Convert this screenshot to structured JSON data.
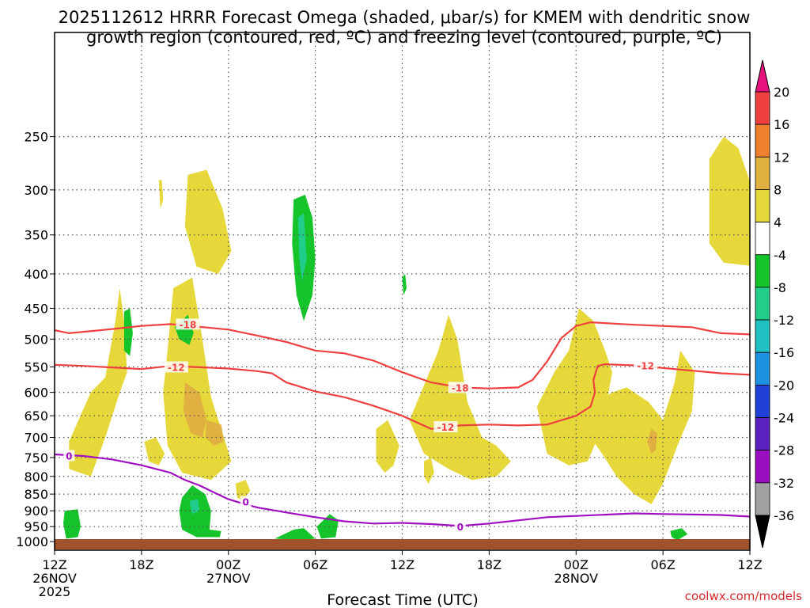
{
  "chart_data": {
    "type": "time-height contour",
    "title_line1": "2025112612 HRRR Forecast Omega (shaded, μbar/s) for KMEM with dendritic snow",
    "title_line2": "growth region (contoured, red, ºC) and freezing level (contoured, purple, ºC)",
    "xlabel": "Forecast Time (UTC)",
    "ylabel": "",
    "credit": "coolwx.com/models",
    "x_ticks": [
      {
        "hour": 0,
        "label": "12Z",
        "date": "26NOV",
        "year": "2025"
      },
      {
        "hour": 6,
        "label": "18Z"
      },
      {
        "hour": 12,
        "label": "00Z",
        "date": "27NOV"
      },
      {
        "hour": 18,
        "label": "06Z"
      },
      {
        "hour": 24,
        "label": "12Z"
      },
      {
        "hour": 30,
        "label": "18Z"
      },
      {
        "hour": 36,
        "label": "00Z",
        "date": "28NOV"
      },
      {
        "hour": 42,
        "label": "06Z"
      },
      {
        "hour": 48,
        "label": "12Z"
      }
    ],
    "xlim": [
      0,
      48
    ],
    "ylim_hpa": [
      1030,
      175
    ],
    "y_ticks": [
      250,
      300,
      350,
      400,
      450,
      500,
      550,
      600,
      650,
      700,
      750,
      800,
      850,
      900,
      950,
      1000
    ],
    "colorbar": {
      "ticks": [
        20,
        16,
        12,
        8,
        4,
        -4,
        -8,
        -12,
        -16,
        -20,
        -24,
        -28,
        -32,
        -36
      ],
      "colors": [
        "#e8127e",
        "#ef4040",
        "#ee8030",
        "#e0b040",
        "#e6d83a",
        "#ffffff",
        "#14c42a",
        "#22cc8a",
        "#20c0c0",
        "#1e90e0",
        "#2040d8",
        "#5a20c0",
        "#9a10c0",
        "#a0a0a0",
        "#000000"
      ]
    },
    "series": [
      {
        "name": "-18 °C isotherm",
        "color": "#ef4040",
        "label": "-18",
        "points": [
          [
            0,
            485
          ],
          [
            1,
            490
          ],
          [
            4,
            483
          ],
          [
            6,
            478
          ],
          [
            8,
            475
          ],
          [
            12,
            484
          ],
          [
            14,
            494
          ],
          [
            16,
            505
          ],
          [
            18,
            520
          ],
          [
            20,
            525
          ],
          [
            22,
            538
          ],
          [
            24,
            560
          ],
          [
            26,
            580
          ],
          [
            28,
            590
          ],
          [
            30,
            592
          ],
          [
            32,
            590
          ],
          [
            33,
            575
          ],
          [
            34,
            540
          ],
          [
            35,
            498
          ],
          [
            36,
            478
          ],
          [
            37,
            472
          ],
          [
            40,
            476
          ],
          [
            44,
            480
          ],
          [
            46,
            490
          ],
          [
            48,
            492
          ]
        ]
      },
      {
        "name": "-12 °C isotherm",
        "color": "#ef4040",
        "label": "-12",
        "points": [
          [
            0,
            546
          ],
          [
            2,
            548
          ],
          [
            6,
            554
          ],
          [
            8,
            548
          ],
          [
            12,
            553
          ],
          [
            14,
            558
          ],
          [
            15,
            562
          ],
          [
            16,
            580
          ],
          [
            18,
            598
          ],
          [
            20,
            610
          ],
          [
            22,
            628
          ],
          [
            24,
            650
          ],
          [
            26,
            680
          ],
          [
            28,
            672
          ],
          [
            30,
            670
          ],
          [
            32,
            672
          ],
          [
            34,
            670
          ],
          [
            35,
            660
          ],
          [
            36,
            650
          ],
          [
            37,
            630
          ],
          [
            37.3,
            600
          ],
          [
            37.2,
            575
          ],
          [
            37.5,
            548
          ],
          [
            38,
            545
          ],
          [
            40,
            547
          ],
          [
            44,
            557
          ],
          [
            46,
            562
          ],
          [
            48,
            565
          ]
        ]
      },
      {
        "name": "0 °C freezing level",
        "color": "#a010c0",
        "label": "0",
        "points": [
          [
            0,
            742
          ],
          [
            2,
            746
          ],
          [
            4,
            755
          ],
          [
            6,
            770
          ],
          [
            8,
            790
          ],
          [
            9,
            810
          ],
          [
            10,
            825
          ],
          [
            11,
            845
          ],
          [
            12,
            865
          ],
          [
            13,
            878
          ],
          [
            14,
            890
          ],
          [
            16,
            905
          ],
          [
            18,
            920
          ],
          [
            20,
            933
          ],
          [
            22,
            940
          ],
          [
            24,
            938
          ],
          [
            26,
            942
          ],
          [
            28,
            948
          ],
          [
            30,
            940
          ],
          [
            32,
            930
          ],
          [
            34,
            920
          ],
          [
            36,
            916
          ],
          [
            38,
            912
          ],
          [
            40,
            908
          ],
          [
            42,
            910
          ],
          [
            46,
            913
          ],
          [
            48,
            918
          ]
        ]
      }
    ],
    "omega_regions": [
      {
        "value": 4,
        "points": [
          [
            1,
            710
          ],
          [
            2.5,
            600
          ],
          [
            3.5,
            570
          ],
          [
            4.2,
            470
          ],
          [
            4.5,
            420
          ],
          [
            4.8,
            470
          ],
          [
            5,
            560
          ],
          [
            4.5,
            600
          ],
          [
            3.5,
            700
          ],
          [
            2.5,
            800
          ],
          [
            1,
            780
          ]
        ]
      },
      {
        "value": 4,
        "points": [
          [
            8.2,
            420
          ],
          [
            9.5,
            405
          ],
          [
            10.2,
            500
          ],
          [
            10.8,
            610
          ],
          [
            11.5,
            680
          ],
          [
            12.2,
            760
          ],
          [
            10.8,
            810
          ],
          [
            8.8,
            790
          ],
          [
            7.8,
            720
          ],
          [
            7.5,
            600
          ],
          [
            7.8,
            520
          ]
        ]
      },
      {
        "value": 4,
        "points": [
          [
            9.2,
            285
          ],
          [
            10.5,
            280
          ],
          [
            11.6,
            320
          ],
          [
            12.2,
            370
          ],
          [
            11.3,
            400
          ],
          [
            9.8,
            390
          ],
          [
            9.0,
            340
          ]
        ]
      },
      {
        "value": 4,
        "points": [
          [
            7.2,
            290
          ],
          [
            7.4,
            290
          ],
          [
            7.5,
            310
          ],
          [
            7.3,
            320
          ]
        ]
      },
      {
        "value": 4,
        "points": [
          [
            6.2,
            710
          ],
          [
            7,
            700
          ],
          [
            7.6,
            740
          ],
          [
            7.2,
            770
          ],
          [
            6.5,
            760
          ]
        ]
      },
      {
        "value": 4,
        "points": [
          [
            12.5,
            820
          ],
          [
            13.2,
            810
          ],
          [
            13.5,
            840
          ],
          [
            13,
            870
          ],
          [
            12.6,
            860
          ]
        ]
      },
      {
        "value": 4,
        "points": [
          [
            24.5,
            660
          ],
          [
            26.5,
            520
          ],
          [
            27.2,
            460
          ],
          [
            27.8,
            500
          ],
          [
            28.5,
            620
          ],
          [
            29.5,
            700
          ],
          [
            30.5,
            720
          ],
          [
            31.5,
            760
          ],
          [
            30.5,
            800
          ],
          [
            28.8,
            810
          ],
          [
            27.2,
            780
          ],
          [
            25.5,
            740
          ]
        ]
      },
      {
        "value": 4,
        "points": [
          [
            33.3,
            630
          ],
          [
            34.5,
            560
          ],
          [
            35.5,
            520
          ],
          [
            36.2,
            450
          ],
          [
            37.2,
            470
          ],
          [
            38,
            520
          ],
          [
            38.5,
            560
          ],
          [
            38,
            640
          ],
          [
            37.5,
            700
          ],
          [
            36.8,
            760
          ],
          [
            35.5,
            770
          ],
          [
            34,
            740
          ]
        ]
      },
      {
        "value": 4,
        "points": [
          [
            36.5,
            640
          ],
          [
            38.5,
            600
          ],
          [
            39.5,
            590
          ],
          [
            41,
            620
          ],
          [
            42,
            660
          ],
          [
            42.8,
            580
          ],
          [
            43.2,
            520
          ],
          [
            44.2,
            560
          ],
          [
            44,
            640
          ],
          [
            43,
            720
          ],
          [
            42,
            820
          ],
          [
            41.2,
            880
          ],
          [
            40,
            850
          ],
          [
            38.8,
            800
          ],
          [
            37.8,
            740
          ],
          [
            37,
            700
          ]
        ]
      },
      {
        "value": 4,
        "points": [
          [
            45.2,
            270
          ],
          [
            46.2,
            250
          ],
          [
            47.2,
            260
          ],
          [
            48.2,
            300
          ],
          [
            48.6,
            370
          ],
          [
            48.5,
            390
          ],
          [
            46.2,
            385
          ],
          [
            45.2,
            360
          ]
        ]
      },
      {
        "value": 4,
        "points": [
          [
            22.2,
            680
          ],
          [
            23,
            660
          ],
          [
            23.8,
            720
          ],
          [
            23.4,
            770
          ],
          [
            22.8,
            790
          ],
          [
            22.2,
            760
          ]
        ]
      },
      {
        "value": 4,
        "points": [
          [
            25.5,
            760
          ],
          [
            26,
            750
          ],
          [
            26.2,
            790
          ],
          [
            25.8,
            820
          ],
          [
            25.5,
            800
          ]
        ]
      },
      {
        "value": 8,
        "points": [
          [
            9,
            580
          ],
          [
            10,
            600
          ],
          [
            10.5,
            660
          ],
          [
            10.2,
            700
          ],
          [
            9.4,
            690
          ],
          [
            8.9,
            640
          ]
        ]
      },
      {
        "value": 8,
        "points": [
          [
            10.5,
            660
          ],
          [
            11.5,
            670
          ],
          [
            11.7,
            710
          ],
          [
            11,
            720
          ],
          [
            10.4,
            700
          ]
        ]
      },
      {
        "value": 8,
        "points": [
          [
            41.2,
            680
          ],
          [
            41.6,
            690
          ],
          [
            41.5,
            730
          ],
          [
            41.2,
            740
          ],
          [
            40.9,
            710
          ]
        ]
      },
      {
        "value": -4,
        "points": [
          [
            16.5,
            310
          ],
          [
            17.3,
            305
          ],
          [
            17.8,
            330
          ],
          [
            18,
            380
          ],
          [
            17.8,
            430
          ],
          [
            17.2,
            470
          ],
          [
            16.7,
            430
          ],
          [
            16.4,
            360
          ]
        ]
      },
      {
        "value": -4,
        "points": [
          [
            4.8,
            455
          ],
          [
            5.2,
            450
          ],
          [
            5.4,
            490
          ],
          [
            5.2,
            530
          ],
          [
            4.8,
            520
          ]
        ]
      },
      {
        "value": -4,
        "points": [
          [
            8.3,
            480
          ],
          [
            9.2,
            460
          ],
          [
            9.6,
            490
          ],
          [
            9.3,
            510
          ],
          [
            8.6,
            500
          ]
        ]
      },
      {
        "value": -4,
        "points": [
          [
            0.7,
            900
          ],
          [
            1.6,
            895
          ],
          [
            1.8,
            950
          ],
          [
            1.6,
            985
          ],
          [
            0.8,
            990
          ],
          [
            0.6,
            940
          ]
        ]
      },
      {
        "value": -4,
        "points": [
          [
            8.8,
            860
          ],
          [
            9.5,
            825
          ],
          [
            10.4,
            850
          ],
          [
            10.8,
            900
          ],
          [
            10.7,
            960
          ],
          [
            11.5,
            965
          ],
          [
            11.4,
            985
          ],
          [
            9.8,
            985
          ],
          [
            8.8,
            960
          ],
          [
            8.6,
            900
          ]
        ]
      },
      {
        "value": -4,
        "points": [
          [
            15.2,
            990
          ],
          [
            16.5,
            960
          ],
          [
            17.2,
            955
          ],
          [
            18,
            990
          ],
          [
            17,
            995
          ]
        ]
      },
      {
        "value": -4,
        "points": [
          [
            18.1,
            950
          ],
          [
            19,
            910
          ],
          [
            19.6,
            930
          ],
          [
            19.4,
            985
          ],
          [
            18.4,
            990
          ]
        ]
      },
      {
        "value": -4,
        "points": [
          [
            24,
            405
          ],
          [
            24.2,
            400
          ],
          [
            24.3,
            420
          ],
          [
            24.1,
            430
          ]
        ]
      },
      {
        "value": -4,
        "points": [
          [
            42.5,
            965
          ],
          [
            43.3,
            955
          ],
          [
            43.7,
            975
          ],
          [
            43,
            995
          ],
          [
            42.6,
            985
          ]
        ]
      },
      {
        "value": -8,
        "points": [
          [
            16.8,
            330
          ],
          [
            17.2,
            325
          ],
          [
            17.4,
            380
          ],
          [
            17.1,
            410
          ],
          [
            16.9,
            380
          ]
        ]
      },
      {
        "value": -8,
        "points": [
          [
            9.3,
            870
          ],
          [
            9.9,
            865
          ],
          [
            10,
            900
          ],
          [
            9.5,
            910
          ]
        ]
      }
    ]
  }
}
